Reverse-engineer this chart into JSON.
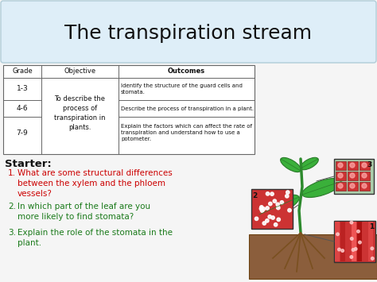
{
  "title": "The transpiration stream",
  "title_bg": "#deeef8",
  "title_fontsize": 18,
  "table_header": [
    "Grade",
    "Objective",
    "Outcomes"
  ],
  "table_grades": [
    "1-3",
    "4-6",
    "7-9"
  ],
  "table_objective": "To describe the\nprocess of\ntranspiration in\nplants.",
  "table_outcomes": [
    "Identify the structure of the guard cells and\nstomata.",
    "Describe the process of transpiration in a plant.",
    "Explain the factors which can affect the rate of\ntranspiration and understand how to use a\npotometer."
  ],
  "starter_label": "Starter:",
  "questions": [
    "What are some structural differences\nbetween the xylem and the phloem\nvessels?",
    "In which part of the leaf are you\nmore likely to find stomata?",
    "Explain the role of the stomata in the\nplant."
  ],
  "q1_color": "#cc0000",
  "q2_color": "#1a7a1a",
  "q3_color": "#1a7a1a",
  "bg_color": "#f5f5f5",
  "table_line_color": "#888888",
  "soil_color": "#8B5E3C",
  "stem_color": "#2d8a2d",
  "leaf_color": "#3ab03a",
  "box_red": "#cc3333",
  "box_green": "#3a8a3a"
}
